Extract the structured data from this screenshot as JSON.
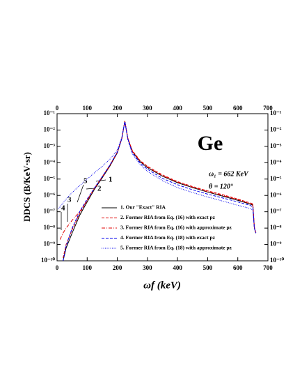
{
  "chart_data": {
    "type": "line",
    "y_label": "DDCS (B/KeV·sr)",
    "x_label": "ωf (keV)",
    "inset_texts": [
      "Ge",
      "ω₁ = 662 KeV",
      "θ = 120°"
    ],
    "annotations": [
      "1",
      "2",
      "3",
      "4",
      "5"
    ],
    "log_y": true,
    "legend": "lower right",
    "xlim": [
      0,
      700
    ],
    "xticks": [
      0,
      100,
      200,
      300,
      400,
      500,
      600,
      700
    ],
    "ylim": [
      1e-10,
      0.1
    ],
    "yticks": [
      {
        "value": 1e-10,
        "label": "10⁻¹⁰"
      },
      {
        "value": 1e-09,
        "label": "10⁻⁹"
      },
      {
        "value": 1e-08,
        "label": "10⁻⁸"
      },
      {
        "value": 1e-07,
        "label": "10⁻⁷"
      },
      {
        "value": 1e-06,
        "label": "10⁻⁶"
      },
      {
        "value": 1e-05,
        "label": "10⁻⁵"
      },
      {
        "value": 0.0001,
        "label": "10⁻⁴"
      },
      {
        "value": 0.001,
        "label": "10⁻³"
      },
      {
        "value": 0.01,
        "label": "10⁻²"
      },
      {
        "value": 0.1,
        "label": "10⁻¹"
      }
    ],
    "x": [
      5,
      10,
      20,
      30,
      50,
      75,
      100,
      125,
      150,
      175,
      200,
      215,
      225,
      235,
      250,
      275,
      300,
      350,
      400,
      450,
      500,
      550,
      600,
      640,
      650,
      655,
      660
    ],
    "series": [
      {
        "name": "1. Our \"Exact\" RIA",
        "color": "#000000",
        "dash": "solid",
        "values": [
          null,
          null,
          1e-10,
          6e-10,
          5e-09,
          6e-08,
          4e-07,
          2.5e-06,
          1.2e-05,
          6e-05,
          0.0004,
          0.003,
          0.035,
          0.003,
          0.0005,
          0.00012,
          5e-05,
          1.5e-05,
          6e-06,
          3e-06,
          1.6e-06,
          9e-07,
          5e-07,
          3e-07,
          2.5e-07,
          1e-08,
          5e-09
        ]
      },
      {
        "name": "2. Former RIA from Eq. (16) with exact pz",
        "color": "#e00000",
        "dash": "dashed",
        "values": [
          null,
          null,
          1.5e-10,
          1e-09,
          8e-09,
          8e-08,
          5e-07,
          3e-06,
          1.4e-05,
          7e-05,
          0.00045,
          0.0032,
          0.035,
          0.0032,
          0.00055,
          0.00014,
          6e-05,
          1.8e-05,
          7e-06,
          3.5e-06,
          1.9e-06,
          1.1e-06,
          6e-07,
          3.5e-07,
          3e-07,
          1.2e-08,
          5e-09
        ]
      },
      {
        "name": "3. Former RIA from Eq. (16) with approximate pz",
        "color": "#e00000",
        "dash": "dashdot",
        "values": [
          null,
          2e-09,
          5e-09,
          1e-08,
          3e-08,
          1e-07,
          5e-07,
          2.8e-06,
          1.3e-05,
          6.5e-05,
          0.00042,
          0.003,
          0.034,
          0.003,
          0.0005,
          0.00013,
          5.5e-05,
          1.6e-05,
          6.5e-06,
          3.2e-06,
          1.7e-06,
          1e-06,
          5.5e-07,
          3.2e-07,
          2.8e-07,
          1e-08,
          5e-09
        ]
      },
      {
        "name": "4. Former RIA from Eq. (18) with exact pz",
        "color": "#0000ee",
        "dash": "dashed",
        "values": [
          null,
          null,
          1e-10,
          8e-10,
          1e-08,
          1e-07,
          6e-07,
          3e-06,
          1.4e-05,
          7e-05,
          0.00045,
          0.003,
          0.033,
          0.0028,
          0.0004,
          0.0001,
          4e-05,
          1.1e-05,
          4.5e-06,
          2.2e-06,
          1.2e-06,
          7e-07,
          4e-07,
          2.5e-07,
          2e-07,
          1e-08,
          5e-09
        ]
      },
      {
        "name": "5. Former RIA from Eq. (18) with approximate pz",
        "color": "#0000ee",
        "dash": "dotted",
        "values": [
          1.5e-07,
          2e-07,
          3.5e-07,
          6e-07,
          1.5e-06,
          4e-06,
          1e-05,
          2.5e-05,
          6e-05,
          0.00016,
          0.0006,
          0.0035,
          0.032,
          0.0025,
          0.00035,
          8e-05,
          3e-05,
          8e-06,
          3e-06,
          1.5e-06,
          8e-07,
          4.5e-07,
          2.5e-07,
          1.6e-07,
          1.3e-07,
          1e-08,
          5e-09
        ]
      }
    ]
  }
}
